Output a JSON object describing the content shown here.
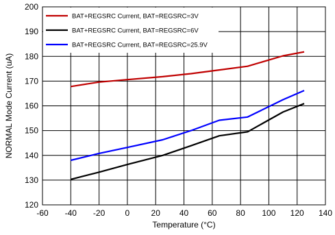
{
  "chart_data": {
    "type": "line",
    "title": "",
    "xlabel": "Temperature (°C)",
    "ylabel": "NORMAL Mode Current (uA)",
    "xlim": [
      -60,
      140
    ],
    "ylim": [
      120,
      200
    ],
    "x_ticks": [
      -60,
      -40,
      -20,
      0,
      20,
      40,
      60,
      80,
      100,
      120,
      140
    ],
    "y_ticks": [
      120,
      130,
      140,
      150,
      160,
      170,
      180,
      190,
      200
    ],
    "grid": true,
    "legend_position": "top-left",
    "series": [
      {
        "name": "BAT+REGSRC Current, BAT=REGSRC=3V",
        "color": "#c00000",
        "x": [
          -40,
          -20,
          0,
          25,
          45,
          65,
          85,
          110,
          125
        ],
        "y": [
          167.8,
          169.6,
          170.6,
          171.8,
          173.0,
          174.5,
          176.0,
          180.2,
          181.8
        ]
      },
      {
        "name": "BAT+REGSRC Current, BAT=REGSRC=6V",
        "color": "#000000",
        "x": [
          -40,
          -20,
          0,
          25,
          45,
          65,
          85,
          110,
          125
        ],
        "y": [
          130.3,
          133.2,
          136.3,
          140.0,
          143.9,
          147.9,
          149.5,
          157.5,
          160.9
        ]
      },
      {
        "name": "BAT+REGSRC Current, BAT=REGSRC=25.9V",
        "color": "#0000ff",
        "x": [
          -40,
          -20,
          0,
          25,
          45,
          65,
          85,
          110,
          125
        ],
        "y": [
          138.0,
          140.8,
          143.2,
          146.3,
          150.0,
          154.2,
          155.5,
          162.5,
          166.2
        ]
      }
    ]
  }
}
